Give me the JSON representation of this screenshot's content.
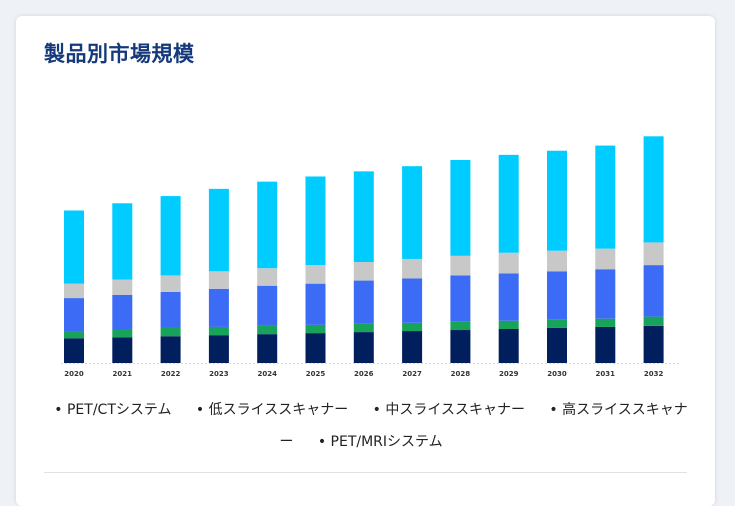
{
  "title": "製品別市場規模",
  "chart_data": {
    "type": "bar",
    "stacked": true,
    "categories": [
      "2020",
      "2021",
      "2022",
      "2023",
      "2024",
      "2025",
      "2026",
      "2027",
      "2028",
      "2029",
      "2030",
      "2031",
      "2032"
    ],
    "series": [
      {
        "name": "PET/MRIシステム",
        "color": "#001f5c",
        "values": [
          24,
          25,
          26,
          27,
          28,
          29,
          30,
          31,
          32,
          33,
          34,
          35,
          36
        ]
      },
      {
        "name": "PET/CTシステム",
        "color": "#18a35a",
        "values": [
          7,
          8,
          8,
          8,
          8,
          8,
          8,
          8,
          8,
          8,
          8,
          8,
          9
        ]
      },
      {
        "name": "低スライススキャナー",
        "color": "#3c6cf5",
        "values": [
          32,
          33,
          35,
          37,
          39,
          40,
          42,
          43,
          45,
          46,
          47,
          48,
          50
        ]
      },
      {
        "name": "中スライススキャナー",
        "color": "#c8c8c8",
        "values": [
          14,
          15,
          16,
          17,
          17,
          18,
          18,
          19,
          19,
          20,
          20,
          20,
          22
        ]
      },
      {
        "name": "高スライススキャナー",
        "color": "#00ccff",
        "values": [
          71,
          74,
          77,
          80,
          84,
          86,
          88,
          90,
          93,
          95,
          97,
          100,
          103
        ]
      }
    ],
    "legend_order": [
      "PET/CTシステム",
      "低スライススキャナー",
      "中スライススキャナー",
      "高スライススキャナー",
      "PET/MRIシステム"
    ],
    "legend_position": "bottom",
    "ylim": [
      0,
      230
    ],
    "grid": false
  }
}
